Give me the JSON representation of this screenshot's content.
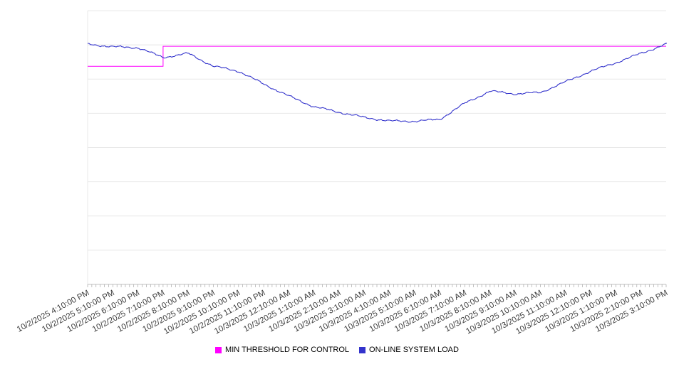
{
  "chart_data": {
    "type": "line",
    "title": "",
    "xlabel": "",
    "ylabel": "",
    "ylim": [
      0,
      100
    ],
    "y_axis_unlabeled": true,
    "grid": "horizontal",
    "legend_position": "bottom",
    "x": [
      "10/2/2025 4:10:00 PM",
      "10/2/2025 5:10:00 PM",
      "10/2/2025 6:10:00 PM",
      "10/2/2025 7:10:00 PM",
      "10/2/2025 8:10:00 PM",
      "10/2/2025 9:10:00 PM",
      "10/2/2025 10:10:00 PM",
      "10/2/2025 11:10:00 PM",
      "10/3/2025 12:10:00 AM",
      "10/3/2025 1:10:00 AM",
      "10/3/2025 2:10:00 AM",
      "10/3/2025 3:10:00 AM",
      "10/3/2025 4:10:00 AM",
      "10/3/2025 5:10:00 AM",
      "10/3/2025 6:10:00 AM",
      "10/3/2025 7:10:00 AM",
      "10/3/2025 8:10:00 AM",
      "10/3/2025 9:10:00 AM",
      "10/3/2025 10:10:00 AM",
      "10/3/2025 11:10:00 AM",
      "10/3/2025 12:10:00 PM",
      "10/3/2025 1:10:00 PM",
      "10/3/2025 2:10:00 PM",
      "10/3/2025 3:10:00 PM"
    ],
    "series": [
      {
        "name": "MIN THRESHOLD FOR CONTROL",
        "color": "#ff00ff",
        "style": "step",
        "values": [
          79.7,
          79.7,
          79.7,
          87.0,
          87.0,
          87.0,
          87.0,
          87.0,
          87.0,
          87.0,
          87.0,
          87.0,
          87.0,
          87.0,
          87.0,
          87.0,
          87.0,
          87.0,
          87.0,
          87.0,
          87.0,
          87.0,
          87.0,
          87.0
        ]
      },
      {
        "name": "ON-LINE SYSTEM LOAD",
        "color": "#3333cc",
        "style": "noisy-line",
        "values": [
          87.8,
          86.8,
          86.5,
          82.9,
          84.4,
          79.7,
          77.9,
          73.2,
          68.8,
          64.9,
          62.9,
          61.0,
          59.7,
          59.6,
          60.3,
          66.2,
          70.6,
          69.6,
          70.1,
          74.0,
          77.9,
          81.0,
          84.4,
          87.8
        ]
      }
    ]
  }
}
